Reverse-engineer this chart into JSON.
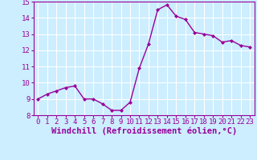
{
  "hours": [
    0,
    1,
    2,
    3,
    4,
    5,
    6,
    7,
    8,
    9,
    10,
    11,
    12,
    13,
    14,
    15,
    16,
    17,
    18,
    19,
    20,
    21,
    22,
    23
  ],
  "values": [
    9.0,
    9.3,
    9.5,
    9.7,
    9.8,
    9.0,
    9.0,
    8.7,
    8.3,
    8.3,
    8.8,
    10.9,
    12.4,
    14.5,
    14.8,
    14.1,
    13.9,
    13.1,
    13.0,
    12.9,
    12.5,
    12.6,
    12.3,
    12.2
  ],
  "line_color": "#990099",
  "marker": "D",
  "marker_size": 2,
  "bg_color": "#cceeff",
  "grid_color": "#ffffff",
  "xlabel": "Windchill (Refroidissement éolien,°C)",
  "tick_color": "#990099",
  "ylim": [
    8,
    15
  ],
  "xlim_min": -0.5,
  "xlim_max": 23.5,
  "yticks": [
    8,
    9,
    10,
    11,
    12,
    13,
    14,
    15
  ],
  "xtick_labels": [
    "0",
    "1",
    "2",
    "3",
    "4",
    "5",
    "6",
    "7",
    "8",
    "9",
    "10",
    "11",
    "12",
    "13",
    "14",
    "15",
    "16",
    "17",
    "18",
    "19",
    "20",
    "21",
    "22",
    "23"
  ],
  "tick_fontsize": 6.5,
  "xlabel_fontsize": 7.5,
  "spine_color": "#990099",
  "linewidth": 1.0
}
